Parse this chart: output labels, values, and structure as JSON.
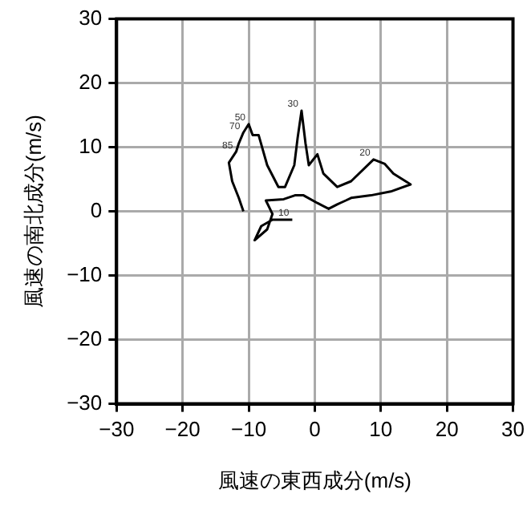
{
  "chart_data": {
    "type": "line",
    "xlabel": "風速の東西成分(m/s)",
    "ylabel": "風速の南北成分(m/s)",
    "xlim": [
      -30,
      30
    ],
    "ylim": [
      -30,
      30
    ],
    "xticks": [
      -30,
      -20,
      -10,
      0,
      10,
      20,
      30
    ],
    "yticks": [
      -30,
      -20,
      -10,
      0,
      10,
      20,
      30
    ],
    "grid": true,
    "legend": false,
    "marker": "none",
    "line_style": "solid",
    "series": [
      {
        "color": "#000000",
        "x": [
          -3.4,
          -6.4,
          -8.1,
          -9.1,
          -7.2,
          -6.4,
          -7.4,
          -4.7,
          -3.0,
          -1.7,
          0.4,
          2.1,
          3.4,
          4.7,
          5.5,
          8.5,
          11.5,
          14.5,
          11.9,
          10.6,
          8.9,
          5.5,
          3.4,
          1.3,
          0.4,
          -0.9,
          -1.4,
          -2.0,
          -2.6,
          -3.1,
          -4.5,
          -5.5,
          -7.2,
          -8.5,
          -9.4,
          -10.0,
          -10.8,
          -11.5,
          -11.9,
          -13.0,
          -12.5,
          -11.5,
          -10.8
        ],
        "values": [
          -1.3,
          -1.3,
          -2.3,
          -4.5,
          -2.8,
          -0.4,
          1.7,
          1.9,
          2.5,
          2.5,
          1.3,
          0.4,
          1.1,
          1.7,
          2.1,
          2.5,
          3.1,
          4.2,
          5.9,
          7.4,
          8.1,
          4.7,
          3.8,
          5.9,
          8.9,
          7.2,
          10.6,
          15.7,
          11.4,
          7.2,
          3.8,
          3.8,
          7.2,
          11.9,
          11.9,
          13.6,
          12.3,
          10.6,
          9.3,
          7.6,
          4.7,
          2.1,
          0
        ]
      }
    ],
    "annotations": [
      {
        "text": "10",
        "x": -3.4,
        "y": -1.3
      },
      {
        "text": "20",
        "x": 8.9,
        "y": 8.1
      },
      {
        "text": "30",
        "x": -2.0,
        "y": 15.7
      },
      {
        "text": "50",
        "x": -10.0,
        "y": 13.6
      },
      {
        "text": "70",
        "x": -10.8,
        "y": 12.3
      },
      {
        "text": "85",
        "x": -11.9,
        "y": 9.3
      }
    ]
  }
}
